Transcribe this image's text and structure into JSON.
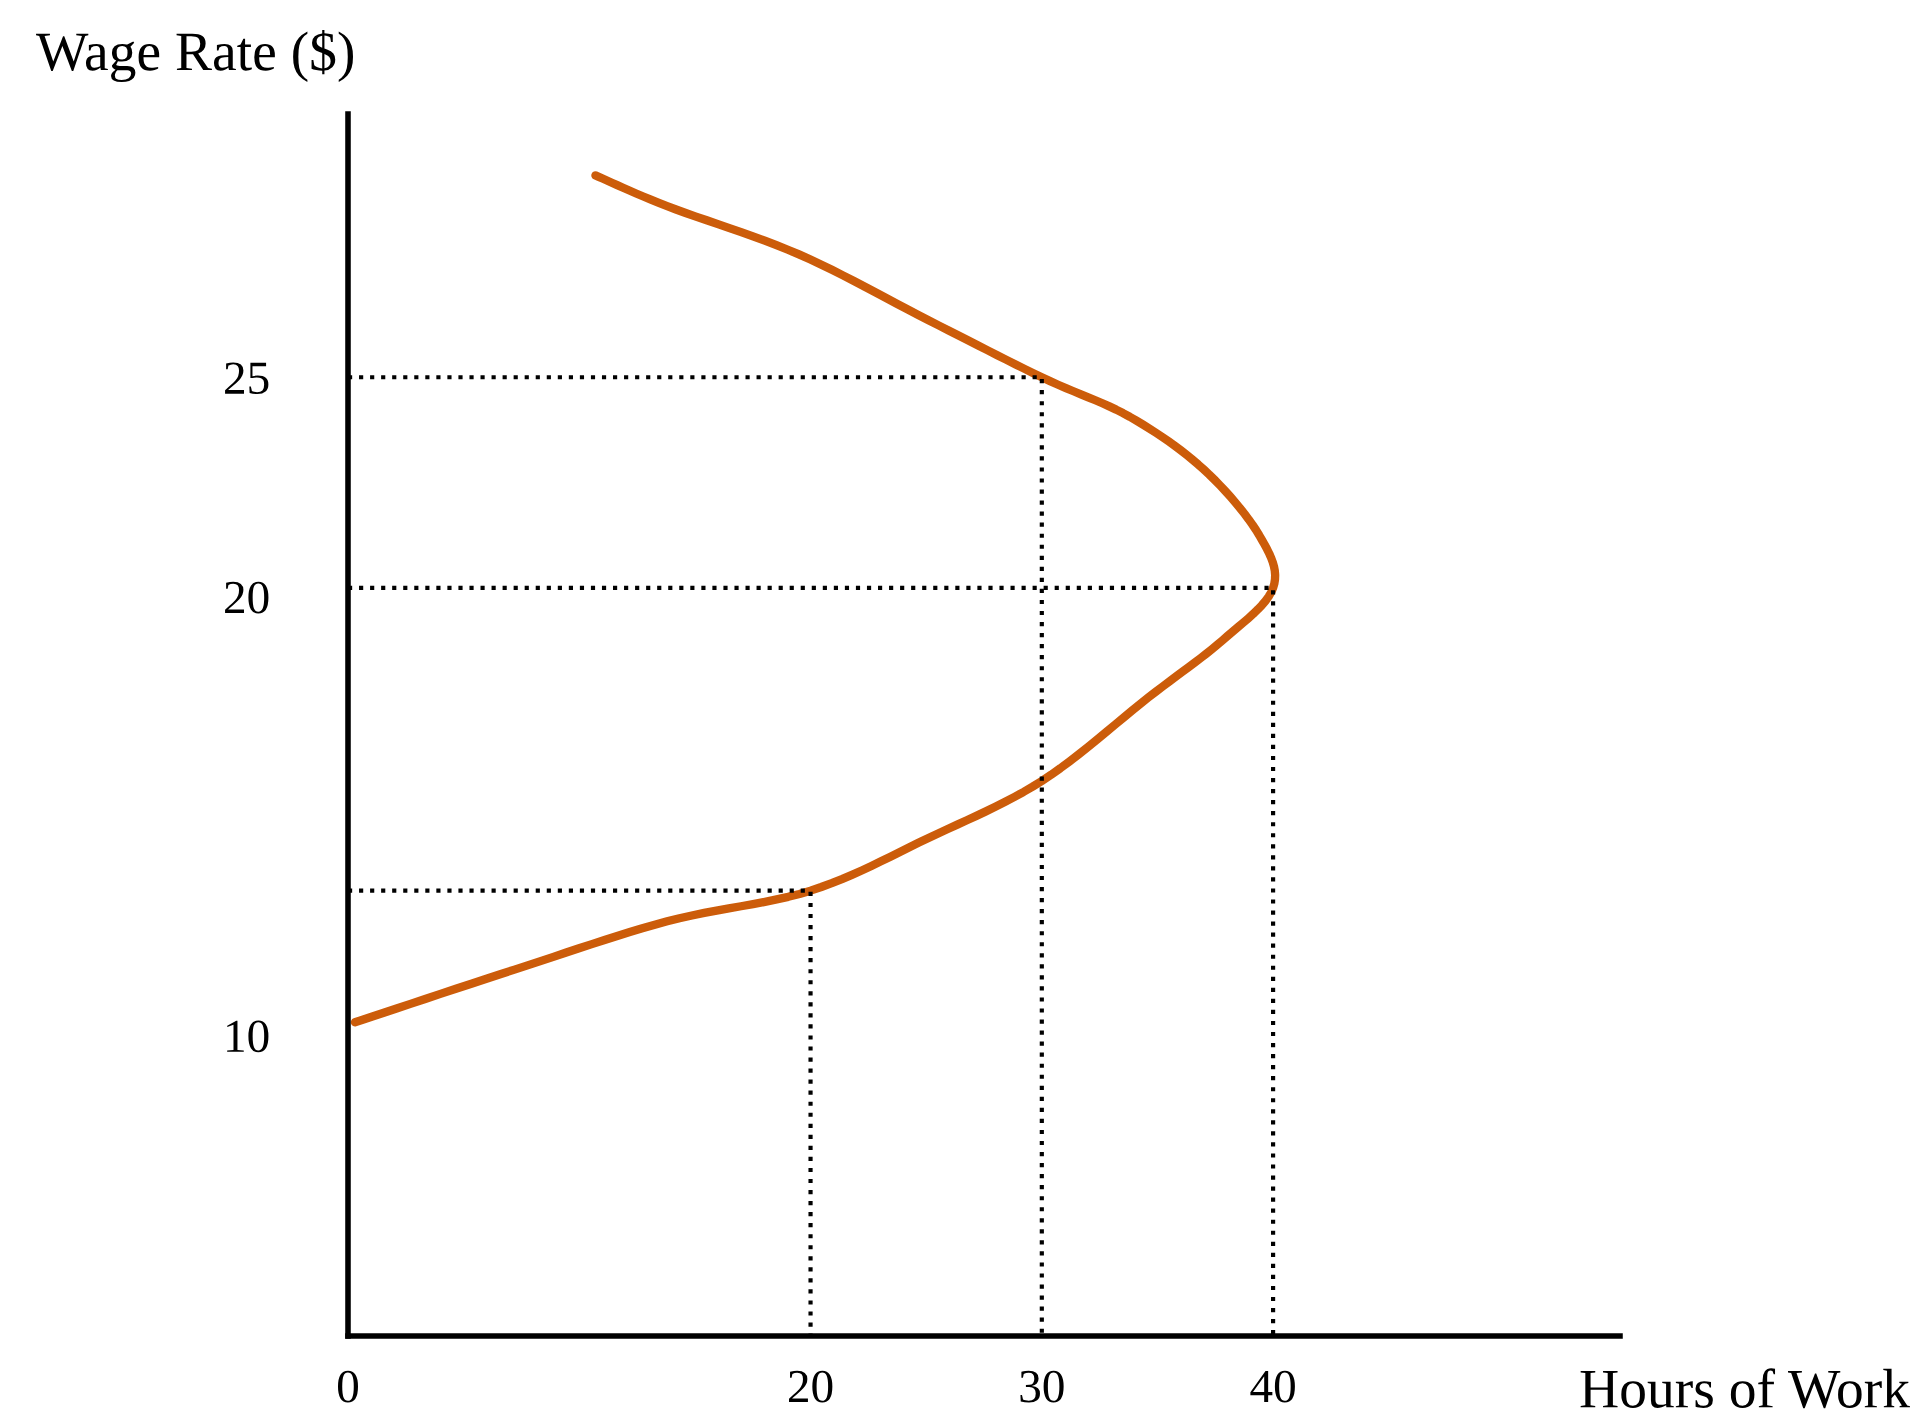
{
  "chart_data": {
    "type": "line",
    "xlabel": "Hours of Work",
    "ylabel": "Wage Rate ($)",
    "xlim": [
      0,
      55
    ],
    "ylim": [
      3.15,
      31
    ],
    "xticks": [
      0,
      20,
      30,
      40
    ],
    "yticks": [
      10,
      20,
      25
    ],
    "grid": false,
    "legend": false,
    "marker": "none",
    "series": [
      {
        "color": "#cc5c0a",
        "line_style": "solid",
        "x": [
          0.3,
          7.2,
          13.8,
          20,
          25.1,
          30,
          34.6,
          37.8,
          40,
          39.4,
          37,
          33.8,
          30,
          25.1,
          19.5,
          13.8,
          10.7
        ],
        "values": [
          10.3,
          11.5,
          12.6,
          13.3,
          14.5,
          15.8,
          17.7,
          19.0,
          20.2,
          21.4,
          22.9,
          24.1,
          25,
          26.3,
          27.8,
          28.9,
          29.6
        ]
      },
      {
        "color": "#000000",
        "line_style": "dotted",
        "x": [
          0,
          20,
          20
        ],
        "values": [
          13.3,
          13.3,
          3.15
        ]
      },
      {
        "color": "#000000",
        "line_style": "dotted",
        "x": [
          0,
          40,
          40
        ],
        "values": [
          20.2,
          20.2,
          3.15
        ]
      },
      {
        "color": "#000000",
        "line_style": "dotted",
        "x": [
          0,
          30,
          30
        ],
        "values": [
          25,
          25,
          3.15
        ]
      }
    ]
  }
}
